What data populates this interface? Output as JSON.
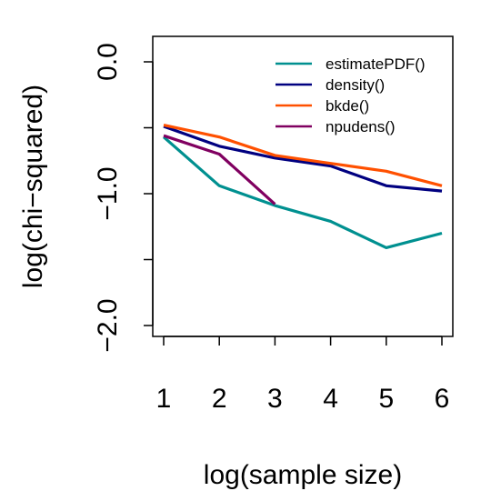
{
  "chart_data": {
    "type": "line",
    "title": "",
    "xlabel": "log(sample size)",
    "ylabel": "log(chi−squared)",
    "xlim": [
      0.8,
      6.2
    ],
    "ylim": [
      -2.1,
      0.2
    ],
    "x_ticks": [
      1,
      2,
      3,
      4,
      5,
      6
    ],
    "x_tick_labels": [
      "1",
      "2",
      "3",
      "4",
      "5",
      "6"
    ],
    "y_ticks": [
      0.0,
      -0.5,
      -1.0,
      -1.5,
      -2.0
    ],
    "y_tick_labels": [
      "0.0",
      "",
      "−1.0",
      "",
      "−2.0"
    ],
    "grid": false,
    "legend_position": "top-right",
    "series": [
      {
        "name": "estimatePDF()",
        "color": "#009090",
        "x": [
          1,
          2,
          3,
          4,
          5,
          6
        ],
        "y": [
          -0.57,
          -0.94,
          -1.09,
          -1.21,
          -1.41,
          -1.3
        ]
      },
      {
        "name": "density()",
        "color": "#000080",
        "x": [
          1,
          2,
          3,
          4,
          5,
          6
        ],
        "y": [
          -0.49,
          -0.64,
          -0.73,
          -0.79,
          -0.94,
          -0.98
        ]
      },
      {
        "name": "bkde()",
        "color": "#ff5000",
        "x": [
          1,
          2,
          3,
          4,
          5,
          6
        ],
        "y": [
          -0.48,
          -0.57,
          -0.71,
          -0.77,
          -0.83,
          -0.94
        ]
      },
      {
        "name": "npudens()",
        "color": "#800060",
        "x": [
          1,
          2,
          3
        ],
        "y": [
          -0.56,
          -0.7,
          -1.08
        ]
      }
    ]
  }
}
